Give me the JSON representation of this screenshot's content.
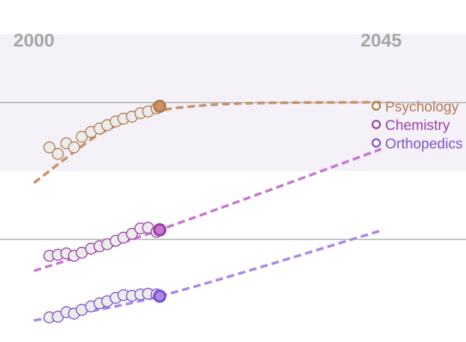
{
  "chart_data": {
    "type": "scatter",
    "title": "",
    "xlabel": "",
    "ylabel": "",
    "x_ticks": [
      {
        "value": 2000,
        "label": "2000"
      },
      {
        "value": 2045,
        "label": "2045"
      }
    ],
    "xlim": [
      1995.6,
      2056.0
    ],
    "ylim": [
      0,
      100
    ],
    "y_reference_lines": [
      70,
      30
    ],
    "shaded_band": [
      50,
      90
    ],
    "legend_position": "right",
    "series": [
      {
        "name": "Psychology",
        "color": "#b37b4f",
        "trend_color": "#c9936a",
        "points": [
          {
            "x": 2002.0,
            "y": 56.9
          },
          {
            "x": 2003.1,
            "y": 55.0
          },
          {
            "x": 2004.2,
            "y": 58.1
          },
          {
            "x": 2005.2,
            "y": 56.9
          },
          {
            "x": 2006.2,
            "y": 60.0
          },
          {
            "x": 2007.4,
            "y": 61.4
          },
          {
            "x": 2008.5,
            "y": 62.4
          },
          {
            "x": 2009.5,
            "y": 63.4
          },
          {
            "x": 2010.6,
            "y": 64.5
          },
          {
            "x": 2011.6,
            "y": 65.3
          },
          {
            "x": 2012.7,
            "y": 65.9
          },
          {
            "x": 2013.8,
            "y": 66.9
          },
          {
            "x": 2014.8,
            "y": 67.4
          },
          {
            "x": 2015.9,
            "y": 68.3
          }
        ],
        "current": {
          "x": 2016.3,
          "y": 68.9
        },
        "trend": [
          {
            "x": 2000.0,
            "y": 46.5
          },
          {
            "x": 2004.0,
            "y": 53.5
          },
          {
            "x": 2008.0,
            "y": 60.1
          },
          {
            "x": 2012.0,
            "y": 64.6
          },
          {
            "x": 2016.0,
            "y": 67.5
          },
          {
            "x": 2020.0,
            "y": 68.8
          },
          {
            "x": 2026.0,
            "y": 69.7
          },
          {
            "x": 2034.0,
            "y": 70.0
          },
          {
            "x": 2045.0,
            "y": 70.1
          }
        ]
      },
      {
        "name": "Chemistry",
        "color": "#9b3fa6",
        "trend_color": "#c77ad1",
        "points": [
          {
            "x": 2002.0,
            "y": 25.2
          },
          {
            "x": 2003.1,
            "y": 25.5
          },
          {
            "x": 2004.2,
            "y": 25.9
          },
          {
            "x": 2005.2,
            "y": 25.2
          },
          {
            "x": 2006.2,
            "y": 26.1
          },
          {
            "x": 2007.4,
            "y": 27.3
          },
          {
            "x": 2008.5,
            "y": 28.0
          },
          {
            "x": 2009.5,
            "y": 28.6
          },
          {
            "x": 2010.6,
            "y": 29.6
          },
          {
            "x": 2011.6,
            "y": 30.5
          },
          {
            "x": 2012.7,
            "y": 31.6
          },
          {
            "x": 2013.8,
            "y": 33.2
          },
          {
            "x": 2014.8,
            "y": 33.4
          },
          {
            "x": 2015.9,
            "y": 32.2
          }
        ],
        "current": {
          "x": 2016.3,
          "y": 32.8
        },
        "trend": [
          {
            "x": 2000.0,
            "y": 20.8
          },
          {
            "x": 2016.3,
            "y": 32.8
          },
          {
            "x": 2045.0,
            "y": 56.4
          }
        ]
      },
      {
        "name": "Orthopedics",
        "color": "#7d52cc",
        "trend_color": "#a98ae6",
        "points": [
          {
            "x": 2002.0,
            "y": 7.2
          },
          {
            "x": 2003.1,
            "y": 7.4
          },
          {
            "x": 2004.2,
            "y": 8.7
          },
          {
            "x": 2005.2,
            "y": 8.3
          },
          {
            "x": 2006.2,
            "y": 9.4
          },
          {
            "x": 2007.4,
            "y": 10.4
          },
          {
            "x": 2008.5,
            "y": 11.3
          },
          {
            "x": 2009.5,
            "y": 11.9
          },
          {
            "x": 2010.6,
            "y": 12.9
          },
          {
            "x": 2011.6,
            "y": 13.7
          },
          {
            "x": 2012.7,
            "y": 13.5
          },
          {
            "x": 2013.8,
            "y": 13.9
          },
          {
            "x": 2014.8,
            "y": 14.1
          },
          {
            "x": 2015.9,
            "y": 13.9
          }
        ],
        "current": {
          "x": 2016.3,
          "y": 13.4
        },
        "trend": [
          {
            "x": 2000.0,
            "y": 6.3
          },
          {
            "x": 2016.3,
            "y": 13.4
          },
          {
            "x": 2045.0,
            "y": 32.6
          }
        ]
      }
    ]
  }
}
